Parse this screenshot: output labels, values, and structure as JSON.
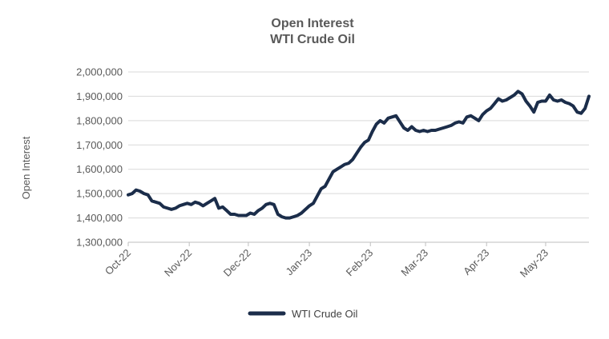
{
  "chart_data": {
    "type": "line",
    "title": "Open Interest",
    "subtitle": "WTI Crude Oil",
    "xlabel": "",
    "ylabel": "Open Interest",
    "ylim": [
      1300000,
      2000000
    ],
    "y_ticks": [
      1300000,
      1400000,
      1500000,
      1600000,
      1700000,
      1800000,
      1900000,
      2000000
    ],
    "y_tick_labels": [
      "1,300,000",
      "1,400,000",
      "1,500,000",
      "1,600,000",
      "1,700,000",
      "1,800,000",
      "1,900,000",
      "2,000,000"
    ],
    "x_tick_labels": [
      "Oct-22",
      "Nov-22",
      "Dec-22",
      "Jan-23",
      "Feb-23",
      "Mar-23",
      "Apr-23",
      "May-23"
    ],
    "x_ticks": [
      "2022-10-01",
      "2022-11-01",
      "2022-12-01",
      "2023-01-01",
      "2023-02-01",
      "2023-03-01",
      "2023-04-01",
      "2023-05-01"
    ],
    "xlim": [
      "2022-10-01",
      "2023-05-23"
    ],
    "grid": "horizontal",
    "legend_position": "bottom",
    "series": [
      {
        "name": "WTI Crude Oil",
        "color": "#1b2d4a",
        "points": [
          [
            "2022-10-01",
            1495000
          ],
          [
            "2022-10-03",
            1500000
          ],
          [
            "2022-10-05",
            1515000
          ],
          [
            "2022-10-07",
            1510000
          ],
          [
            "2022-10-09",
            1500000
          ],
          [
            "2022-10-11",
            1495000
          ],
          [
            "2022-10-13",
            1470000
          ],
          [
            "2022-10-15",
            1465000
          ],
          [
            "2022-10-17",
            1460000
          ],
          [
            "2022-10-19",
            1445000
          ],
          [
            "2022-10-21",
            1440000
          ],
          [
            "2022-10-23",
            1435000
          ],
          [
            "2022-10-25",
            1440000
          ],
          [
            "2022-10-27",
            1450000
          ],
          [
            "2022-10-29",
            1455000
          ],
          [
            "2022-10-31",
            1460000
          ],
          [
            "2022-11-02",
            1455000
          ],
          [
            "2022-11-04",
            1465000
          ],
          [
            "2022-11-06",
            1460000
          ],
          [
            "2022-11-08",
            1450000
          ],
          [
            "2022-11-10",
            1460000
          ],
          [
            "2022-11-12",
            1470000
          ],
          [
            "2022-11-14",
            1480000
          ],
          [
            "2022-11-16",
            1440000
          ],
          [
            "2022-11-18",
            1445000
          ],
          [
            "2022-11-20",
            1430000
          ],
          [
            "2022-11-22",
            1415000
          ],
          [
            "2022-11-24",
            1415000
          ],
          [
            "2022-11-26",
            1410000
          ],
          [
            "2022-11-28",
            1410000
          ],
          [
            "2022-11-30",
            1410000
          ],
          [
            "2022-12-02",
            1420000
          ],
          [
            "2022-12-04",
            1415000
          ],
          [
            "2022-12-06",
            1430000
          ],
          [
            "2022-12-08",
            1440000
          ],
          [
            "2022-12-10",
            1455000
          ],
          [
            "2022-12-12",
            1460000
          ],
          [
            "2022-12-14",
            1455000
          ],
          [
            "2022-12-16",
            1415000
          ],
          [
            "2022-12-18",
            1405000
          ],
          [
            "2022-12-20",
            1400000
          ],
          [
            "2022-12-22",
            1400000
          ],
          [
            "2022-12-24",
            1405000
          ],
          [
            "2022-12-26",
            1410000
          ],
          [
            "2022-12-28",
            1420000
          ],
          [
            "2022-12-30",
            1435000
          ],
          [
            "2023-01-01",
            1450000
          ],
          [
            "2023-01-03",
            1460000
          ],
          [
            "2023-01-05",
            1490000
          ],
          [
            "2023-01-07",
            1520000
          ],
          [
            "2023-01-09",
            1530000
          ],
          [
            "2023-01-11",
            1560000
          ],
          [
            "2023-01-13",
            1590000
          ],
          [
            "2023-01-15",
            1600000
          ],
          [
            "2023-01-17",
            1610000
          ],
          [
            "2023-01-19",
            1620000
          ],
          [
            "2023-01-21",
            1625000
          ],
          [
            "2023-01-23",
            1640000
          ],
          [
            "2023-01-25",
            1665000
          ],
          [
            "2023-01-27",
            1690000
          ],
          [
            "2023-01-29",
            1710000
          ],
          [
            "2023-01-31",
            1720000
          ],
          [
            "2023-02-02",
            1755000
          ],
          [
            "2023-02-04",
            1785000
          ],
          [
            "2023-02-06",
            1800000
          ],
          [
            "2023-02-08",
            1790000
          ],
          [
            "2023-02-10",
            1810000
          ],
          [
            "2023-02-12",
            1815000
          ],
          [
            "2023-02-14",
            1820000
          ],
          [
            "2023-02-16",
            1795000
          ],
          [
            "2023-02-18",
            1770000
          ],
          [
            "2023-02-20",
            1760000
          ],
          [
            "2023-02-22",
            1775000
          ],
          [
            "2023-02-24",
            1760000
          ],
          [
            "2023-02-26",
            1755000
          ],
          [
            "2023-02-28",
            1760000
          ],
          [
            "2023-03-02",
            1755000
          ],
          [
            "2023-03-04",
            1760000
          ],
          [
            "2023-03-06",
            1760000
          ],
          [
            "2023-03-08",
            1765000
          ],
          [
            "2023-03-10",
            1770000
          ],
          [
            "2023-03-12",
            1775000
          ],
          [
            "2023-03-14",
            1780000
          ],
          [
            "2023-03-16",
            1790000
          ],
          [
            "2023-03-18",
            1795000
          ],
          [
            "2023-03-20",
            1790000
          ],
          [
            "2023-03-22",
            1815000
          ],
          [
            "2023-03-24",
            1820000
          ],
          [
            "2023-03-26",
            1810000
          ],
          [
            "2023-03-28",
            1800000
          ],
          [
            "2023-03-30",
            1825000
          ],
          [
            "2023-04-01",
            1840000
          ],
          [
            "2023-04-03",
            1850000
          ],
          [
            "2023-04-05",
            1870000
          ],
          [
            "2023-04-07",
            1890000
          ],
          [
            "2023-04-09",
            1880000
          ],
          [
            "2023-04-11",
            1885000
          ],
          [
            "2023-04-13",
            1895000
          ],
          [
            "2023-04-15",
            1905000
          ],
          [
            "2023-04-17",
            1920000
          ],
          [
            "2023-04-19",
            1910000
          ],
          [
            "2023-04-21",
            1880000
          ],
          [
            "2023-04-23",
            1860000
          ],
          [
            "2023-04-25",
            1835000
          ],
          [
            "2023-04-27",
            1875000
          ],
          [
            "2023-04-29",
            1880000
          ],
          [
            "2023-05-01",
            1880000
          ],
          [
            "2023-05-03",
            1905000
          ],
          [
            "2023-05-05",
            1885000
          ],
          [
            "2023-05-07",
            1880000
          ],
          [
            "2023-05-09",
            1885000
          ],
          [
            "2023-05-11",
            1875000
          ],
          [
            "2023-05-13",
            1870000
          ],
          [
            "2023-05-15",
            1860000
          ],
          [
            "2023-05-17",
            1835000
          ],
          [
            "2023-05-19",
            1830000
          ],
          [
            "2023-05-21",
            1850000
          ],
          [
            "2023-05-23",
            1900000
          ]
        ]
      }
    ]
  }
}
